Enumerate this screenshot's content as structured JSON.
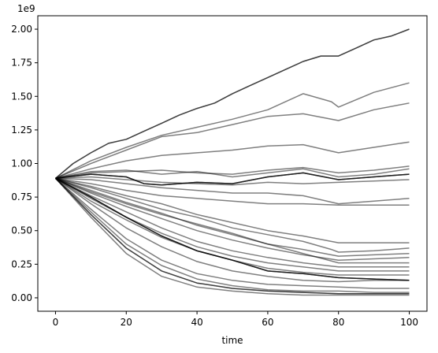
{
  "chart_data": {
    "type": "line",
    "xlabel": "time",
    "ylabel": "",
    "offset_text": "1e9",
    "xlim": [
      -5,
      105
    ],
    "ylim": [
      -0.1,
      2.1
    ],
    "x_ticks": [
      0,
      20,
      40,
      60,
      80,
      100
    ],
    "x_tick_labels": [
      "0",
      "20",
      "40",
      "60",
      "80",
      "100"
    ],
    "y_ticks": [
      0,
      0.25,
      0.5,
      0.75,
      1.0,
      1.25,
      1.5,
      1.75,
      2.0
    ],
    "y_tick_labels": [
      "0.00",
      "0.25",
      "0.50",
      "0.75",
      "1.00",
      "1.25",
      "1.50",
      "1.75",
      "2.00"
    ],
    "grid": false,
    "line_color": "#000000",
    "line_alpha": 0.5,
    "series": [
      {
        "x": [
          0,
          5,
          10,
          15,
          20,
          25,
          30,
          35,
          40,
          45,
          50,
          55,
          60,
          65,
          70,
          75,
          80,
          85,
          90,
          95,
          100
        ],
        "values": [
          0.89,
          1.0,
          1.08,
          1.15,
          1.18,
          1.24,
          1.3,
          1.36,
          1.41,
          1.45,
          1.52,
          1.58,
          1.64,
          1.7,
          1.76,
          1.8,
          1.8,
          1.86,
          1.92,
          1.95,
          2.0
        ],
        "overlap": 2
      },
      {
        "x": [
          0,
          10,
          20,
          30,
          40,
          50,
          60,
          70,
          78,
          80,
          90,
          100
        ],
        "values": [
          0.89,
          1.02,
          1.12,
          1.21,
          1.27,
          1.33,
          1.4,
          1.52,
          1.46,
          1.42,
          1.53,
          1.6
        ]
      },
      {
        "x": [
          0,
          10,
          20,
          30,
          40,
          50,
          60,
          70,
          80,
          90,
          100
        ],
        "values": [
          0.89,
          1.0,
          1.1,
          1.2,
          1.23,
          1.29,
          1.35,
          1.37,
          1.32,
          1.4,
          1.45
        ]
      },
      {
        "x": [
          0,
          10,
          20,
          30,
          40,
          50,
          60,
          70,
          80,
          90,
          100
        ],
        "values": [
          0.89,
          0.96,
          1.02,
          1.06,
          1.08,
          1.1,
          1.13,
          1.14,
          1.08,
          1.12,
          1.16
        ]
      },
      {
        "x": [
          0,
          10,
          20,
          30,
          40,
          50,
          60,
          70,
          80,
          90,
          100
        ],
        "values": [
          0.89,
          0.93,
          0.94,
          0.95,
          0.93,
          0.92,
          0.95,
          0.97,
          0.93,
          0.95,
          0.98
        ]
      },
      {
        "x": [
          0,
          10,
          20,
          30,
          40,
          50,
          60,
          70,
          80,
          90,
          100
        ],
        "values": [
          0.89,
          0.94,
          0.95,
          0.92,
          0.94,
          0.9,
          0.93,
          0.96,
          0.9,
          0.92,
          0.96
        ]
      },
      {
        "x": [
          0,
          10,
          20,
          25,
          30,
          40,
          50,
          60,
          70,
          80,
          90,
          100
        ],
        "values": [
          0.89,
          0.92,
          0.9,
          0.85,
          0.84,
          0.86,
          0.85,
          0.9,
          0.93,
          0.88,
          0.9,
          0.92
        ],
        "overlap": 3
      },
      {
        "x": [
          0,
          10,
          20,
          30,
          40,
          50,
          60,
          70,
          80,
          90,
          100
        ],
        "values": [
          0.89,
          0.9,
          0.88,
          0.86,
          0.85,
          0.84,
          0.86,
          0.85,
          0.86,
          0.87,
          0.88
        ]
      },
      {
        "x": [
          0,
          10,
          20,
          30,
          40,
          50,
          60,
          70,
          80,
          90,
          100
        ],
        "values": [
          0.89,
          0.88,
          0.85,
          0.82,
          0.8,
          0.78,
          0.78,
          0.76,
          0.7,
          0.72,
          0.74
        ]
      },
      {
        "x": [
          0,
          10,
          20,
          30,
          40,
          50,
          60,
          70,
          80,
          90,
          100
        ],
        "values": [
          0.89,
          0.85,
          0.8,
          0.76,
          0.74,
          0.72,
          0.7,
          0.7,
          0.69,
          0.69,
          0.69
        ]
      },
      {
        "x": [
          0,
          10,
          20,
          30,
          40,
          50,
          60,
          70,
          80,
          90,
          100
        ],
        "values": [
          0.89,
          0.83,
          0.76,
          0.7,
          0.62,
          0.56,
          0.5,
          0.46,
          0.41,
          0.41,
          0.41
        ]
      },
      {
        "x": [
          0,
          10,
          20,
          30,
          40,
          50,
          60,
          70,
          78,
          80,
          90,
          100
        ],
        "values": [
          0.89,
          0.82,
          0.74,
          0.66,
          0.6,
          0.52,
          0.47,
          0.42,
          0.36,
          0.34,
          0.35,
          0.37
        ]
      },
      {
        "x": [
          0,
          10,
          20,
          30,
          40,
          50,
          60,
          70,
          80,
          90,
          100
        ],
        "values": [
          0.89,
          0.8,
          0.71,
          0.63,
          0.54,
          0.47,
          0.4,
          0.36,
          0.31,
          0.32,
          0.33
        ]
      },
      {
        "x": [
          0,
          10,
          20,
          30,
          40,
          50,
          60,
          70,
          80,
          90,
          100
        ],
        "values": [
          0.89,
          0.78,
          0.68,
          0.59,
          0.5,
          0.43,
          0.37,
          0.32,
          0.28,
          0.29,
          0.3
        ]
      },
      {
        "x": [
          0,
          10,
          20,
          30,
          40,
          50,
          60,
          70,
          80,
          90,
          100
        ],
        "values": [
          0.89,
          0.79,
          0.7,
          0.62,
          0.55,
          0.48,
          0.4,
          0.33,
          0.26,
          0.26,
          0.26
        ]
      },
      {
        "x": [
          0,
          10,
          20,
          30,
          40,
          50,
          60,
          70,
          80,
          90,
          100
        ],
        "values": [
          0.89,
          0.76,
          0.64,
          0.52,
          0.42,
          0.35,
          0.3,
          0.26,
          0.23,
          0.23,
          0.23
        ]
      },
      {
        "x": [
          0,
          10,
          20,
          30,
          40,
          50,
          60,
          70,
          80,
          90,
          100
        ],
        "values": [
          0.89,
          0.74,
          0.6,
          0.48,
          0.38,
          0.31,
          0.26,
          0.23,
          0.2,
          0.2,
          0.2
        ]
      },
      {
        "x": [
          0,
          10,
          20,
          30,
          40,
          50,
          60,
          70,
          80,
          90,
          100
        ],
        "values": [
          0.89,
          0.72,
          0.58,
          0.45,
          0.35,
          0.28,
          0.22,
          0.19,
          0.17,
          0.17,
          0.17
        ]
      },
      {
        "x": [
          0,
          10,
          20,
          30,
          40,
          50,
          60,
          70,
          80,
          90,
          100
        ],
        "values": [
          0.89,
          0.75,
          0.6,
          0.46,
          0.35,
          0.28,
          0.2,
          0.18,
          0.15,
          0.14,
          0.13
        ],
        "overlap": 3
      },
      {
        "x": [
          0,
          10,
          20,
          30,
          40,
          50,
          60,
          70,
          80,
          90,
          100
        ],
        "values": [
          0.89,
          0.7,
          0.52,
          0.38,
          0.27,
          0.2,
          0.16,
          0.13,
          0.12,
          0.13,
          0.13
        ]
      },
      {
        "x": [
          0,
          10,
          20,
          30,
          40,
          50,
          60,
          70,
          80,
          90,
          100
        ],
        "values": [
          0.89,
          0.66,
          0.44,
          0.28,
          0.18,
          0.13,
          0.1,
          0.09,
          0.08,
          0.07,
          0.07
        ]
      },
      {
        "x": [
          0,
          10,
          20,
          30,
          40,
          50,
          60,
          70,
          80,
          90,
          100
        ],
        "values": [
          0.89,
          0.62,
          0.37,
          0.2,
          0.11,
          0.07,
          0.05,
          0.04,
          0.03,
          0.03,
          0.03
        ],
        "overlap": 2
      },
      {
        "x": [
          0,
          10,
          20,
          30,
          40,
          50,
          60,
          70,
          80,
          90,
          100
        ],
        "values": [
          0.89,
          0.6,
          0.33,
          0.16,
          0.08,
          0.05,
          0.03,
          0.02,
          0.02,
          0.02,
          0.02
        ]
      },
      {
        "x": [
          0,
          10,
          20,
          30,
          40,
          50,
          60,
          70,
          80,
          90,
          100
        ],
        "values": [
          0.89,
          0.64,
          0.4,
          0.24,
          0.14,
          0.09,
          0.06,
          0.05,
          0.05,
          0.04,
          0.04
        ]
      }
    ]
  }
}
